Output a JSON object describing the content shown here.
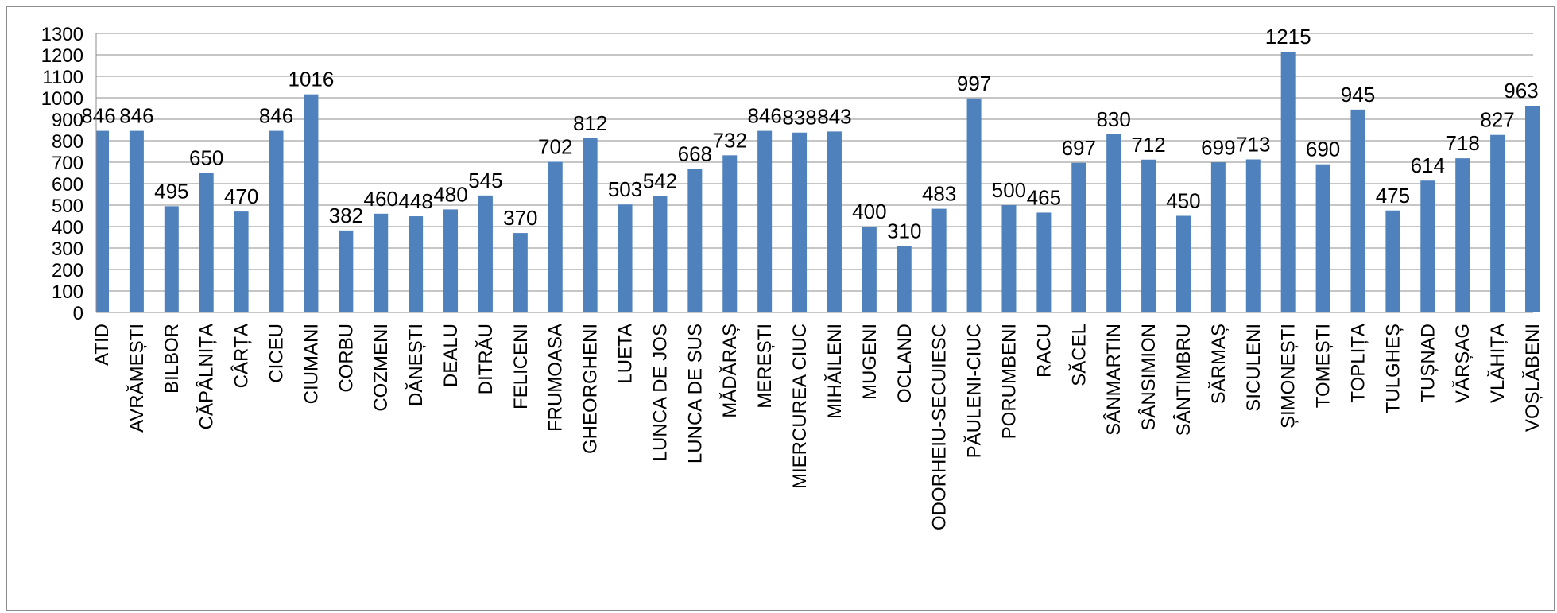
{
  "chart_data": {
    "type": "bar",
    "categories": [
      "ATID",
      "AVRĂMEȘTI",
      "BILBOR",
      "CĂPÂLNIȚA",
      "CÂRȚA",
      "CICEU",
      "CIUMANI",
      "CORBU",
      "COZMENI",
      "DĂNEȘTI",
      "DEALU",
      "DITRĂU",
      "FELICENI",
      "FRUMOASA",
      "GHEORGHENI",
      "LUETA",
      "LUNCA DE JOS",
      "LUNCA DE SUS",
      "MĂDĂRAȘ",
      "MEREȘTI",
      "MIERCUREA CIUC",
      "MIHĂILENI",
      "MUGENI",
      "OCLAND",
      "ODORHEIU-SECUIESC",
      "PĂULENI-CIUC",
      "PORUMBENI",
      "RACU",
      "SĂCEL",
      "SÂNMARTIN",
      "SÂNSIMION",
      "SÂNTIMBRU",
      "SĂRMAȘ",
      "SICULENI",
      "ȘIMONEȘTI",
      "TOMEȘTI",
      "TOPLIȚA",
      "TULGHEȘ",
      "TUȘNAD",
      "VĂRȘAG",
      "VLĂHIȚA",
      "VOȘLĂBENI"
    ],
    "values": [
      846,
      846,
      495,
      650,
      470,
      846,
      1016,
      382,
      460,
      448,
      480,
      545,
      370,
      702,
      812,
      503,
      542,
      668,
      732,
      846,
      838,
      843,
      400,
      310,
      483,
      997,
      500,
      465,
      697,
      830,
      712,
      450,
      699,
      713,
      1215,
      690,
      945,
      475,
      614,
      718,
      827,
      963
    ],
    "value_labels": [
      "846",
      "846",
      "495",
      "650",
      "470",
      "846",
      "1016",
      "382",
      "460",
      "448",
      "480",
      "545",
      "370",
      "702",
      "812",
      "503",
      "542",
      "668",
      "732",
      "846",
      "838",
      "843",
      "400",
      "310",
      "483",
      "997",
      "500",
      "465",
      "697",
      "830",
      "712",
      "450",
      "699",
      "713",
      "1215",
      "690",
      "945",
      "475",
      "614",
      "718",
      "827",
      "963"
    ],
    "yticks": [
      "0",
      "100",
      "200",
      "300",
      "400",
      "500",
      "600",
      "700",
      "800",
      "900",
      "1000",
      "1100",
      "1200",
      "1300"
    ],
    "ylim": [
      0,
      1300
    ],
    "title": "",
    "xlabel": "",
    "ylabel": "",
    "grid": true,
    "legend": "none",
    "bar_color": "#4f81bd",
    "grid_color": "#8c8c8c"
  }
}
